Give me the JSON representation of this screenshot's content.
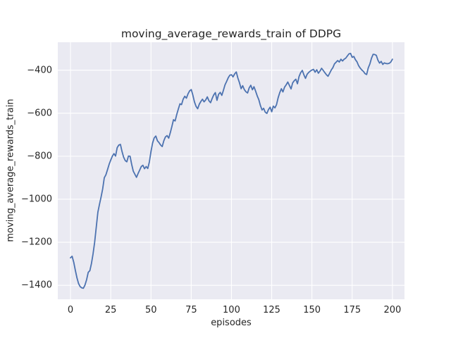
{
  "chart_data": {
    "type": "line",
    "title": "moving_average_rewards_train of DDPG",
    "xlabel": "episodes",
    "ylabel": "moving_average_rewards_train",
    "grid": true,
    "legend": false,
    "xlim": [
      -7.9,
      207.5
    ],
    "ylim": [
      -1465,
      -270
    ],
    "x_ticks": {
      "values": [
        0,
        25,
        50,
        75,
        100,
        125,
        150,
        175,
        200
      ],
      "labels": [
        "0",
        "25",
        "50",
        "75",
        "100",
        "125",
        "150",
        "175",
        "200"
      ]
    },
    "y_ticks": {
      "values": [
        -400,
        -600,
        -800,
        -1000,
        -1200,
        -1400
      ],
      "labels": [
        "−400",
        "−600",
        "−800",
        "−1000",
        "−1200",
        "−1400"
      ]
    },
    "style": {
      "axes_background": "#eaeaf2",
      "grid_color": "#ffffff",
      "line_color": "#4c72b0",
      "text_color": "#262626",
      "figure_background": "#ffffff"
    },
    "series": [
      {
        "name": "moving_average_rewards_train",
        "color": "#4c72b0",
        "x_start": 0,
        "x_step": 1,
        "values": [
          -1272,
          -1265,
          -1292,
          -1330,
          -1365,
          -1392,
          -1406,
          -1412,
          -1414,
          -1399,
          -1374,
          -1340,
          -1332,
          -1300,
          -1255,
          -1200,
          -1130,
          -1060,
          -1023,
          -990,
          -952,
          -900,
          -886,
          -862,
          -837,
          -818,
          -800,
          -788,
          -799,
          -760,
          -748,
          -745,
          -777,
          -804,
          -820,
          -826,
          -799,
          -800,
          -837,
          -869,
          -884,
          -898,
          -880,
          -864,
          -848,
          -842,
          -858,
          -848,
          -857,
          -826,
          -777,
          -739,
          -715,
          -706,
          -728,
          -737,
          -748,
          -755,
          -728,
          -710,
          -704,
          -716,
          -690,
          -662,
          -630,
          -636,
          -606,
          -580,
          -556,
          -560,
          -535,
          -521,
          -530,
          -510,
          -496,
          -490,
          -515,
          -547,
          -568,
          -579,
          -558,
          -545,
          -535,
          -547,
          -538,
          -524,
          -542,
          -551,
          -532,
          -515,
          -504,
          -540,
          -512,
          -503,
          -517,
          -494,
          -468,
          -452,
          -435,
          -423,
          -421,
          -431,
          -417,
          -408,
          -437,
          -459,
          -486,
          -472,
          -490,
          -500,
          -506,
          -482,
          -470,
          -491,
          -477,
          -497,
          -519,
          -537,
          -565,
          -585,
          -577,
          -595,
          -601,
          -583,
          -572,
          -593,
          -567,
          -575,
          -560,
          -528,
          -504,
          -486,
          -501,
          -479,
          -468,
          -455,
          -471,
          -487,
          -459,
          -449,
          -442,
          -463,
          -429,
          -411,
          -401,
          -421,
          -438,
          -419,
          -410,
          -404,
          -399,
          -396,
          -409,
          -398,
          -414,
          -404,
          -391,
          -401,
          -411,
          -421,
          -428,
          -414,
          -399,
          -388,
          -371,
          -363,
          -355,
          -362,
          -349,
          -357,
          -349,
          -344,
          -334,
          -324,
          -322,
          -340,
          -336,
          -351,
          -361,
          -379,
          -390,
          -399,
          -406,
          -416,
          -420,
          -389,
          -371,
          -344,
          -326,
          -327,
          -331,
          -353,
          -367,
          -359,
          -373,
          -366,
          -369,
          -370,
          -368,
          -362,
          -349
        ]
      }
    ]
  }
}
